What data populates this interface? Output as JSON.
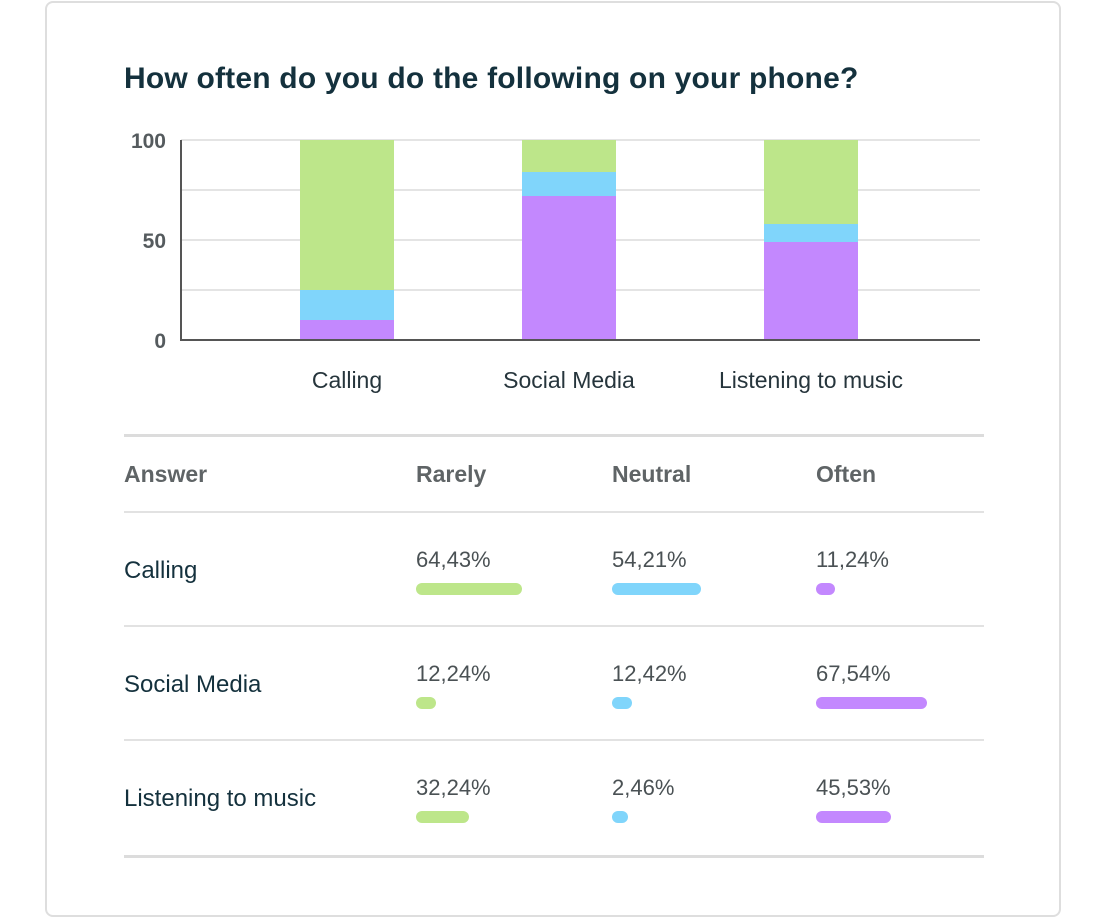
{
  "card": {
    "title": "How often do you do the following on your phone?"
  },
  "colors": {
    "rarely": "#bde68a",
    "neutral": "#80d5fb",
    "often": "#c388fe",
    "grid": "#dcdcdc",
    "axis": "#555555"
  },
  "chart_data": {
    "type": "bar",
    "stacked": true,
    "categories": [
      "Calling",
      "Social Media",
      "Listening to music"
    ],
    "series": [
      {
        "key": "often",
        "values": [
          10,
          72,
          49
        ]
      },
      {
        "key": "neutral",
        "values": [
          15,
          12,
          9
        ]
      },
      {
        "key": "rarely",
        "values": [
          75,
          16,
          42
        ]
      }
    ],
    "yticks": [
      "0",
      "50",
      "100"
    ],
    "ylim": [
      0,
      100
    ],
    "grid": true
  },
  "table": {
    "headers": [
      "Answer",
      "Rarely",
      "Neutral",
      "Often"
    ],
    "rows": [
      {
        "label": "Calling",
        "rarely": {
          "text": "64,43%",
          "fraction": 0.6443
        },
        "neutral": {
          "text": "54,21%",
          "fraction": 0.5421
        },
        "often": {
          "text": "11,24%",
          "fraction": 0.1124
        }
      },
      {
        "label": "Social Media",
        "rarely": {
          "text": "12,24%",
          "fraction": 0.1224
        },
        "neutral": {
          "text": "12,42%",
          "fraction": 0.1242
        },
        "often": {
          "text": "67,54%",
          "fraction": 0.6754
        }
      },
      {
        "label": "Listening to music",
        "rarely": {
          "text": "32,24%",
          "fraction": 0.3224
        },
        "neutral": {
          "text": "2,46%",
          "fraction": 0.0246
        },
        "often": {
          "text": "45,53%",
          "fraction": 0.4553
        }
      }
    ]
  }
}
